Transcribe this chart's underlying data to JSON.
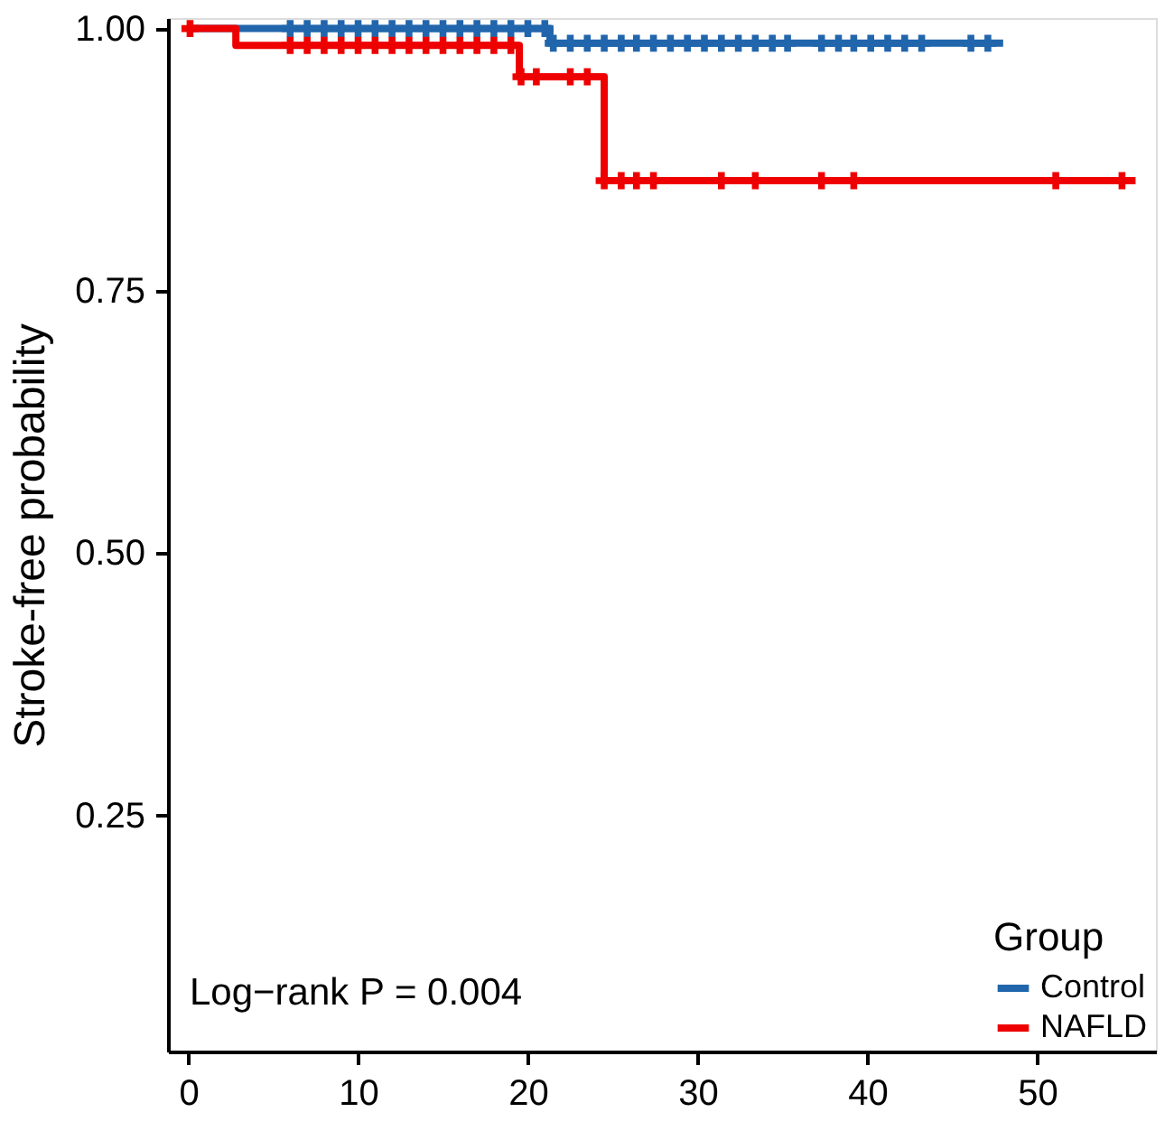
{
  "chart_data": {
    "type": "step",
    "ylabel": "Stroke-free probability",
    "legend_title": "Group",
    "legend": "bottom right",
    "grid": false,
    "line_style": "solid",
    "xlim": [
      -1.2,
      57
    ],
    "xticks": [
      0,
      10,
      20,
      30,
      40,
      50
    ],
    "ylim": [
      0.025,
      1.01
    ],
    "yticks": [
      0.25,
      {
        "value": 0.5,
        "label": "0.50"
      },
      {
        "value": 0.75,
        "label": "0.75"
      },
      {
        "value": 1.0,
        "label": "1.00"
      }
    ],
    "annotations": [
      "Log−rank P = 0.004"
    ],
    "series": [
      {
        "name": "Control",
        "color": "#2166ac",
        "x": [
          0,
          21.3,
          48
        ],
        "values": [
          1.0,
          0.986,
          0.986
        ]
      },
      {
        "name": "NAFLD",
        "color": "#ee0000",
        "x": [
          0,
          2.8,
          19.5,
          24.5,
          55.8
        ],
        "values": [
          1.0,
          0.984,
          0.954,
          0.855,
          0.855
        ]
      },
      {
        "type": "scatter",
        "marker": "cross",
        "color": "#2166ac",
        "x": [
          6,
          7,
          8,
          9,
          10,
          11,
          12,
          13,
          14,
          15,
          16,
          17,
          18,
          19,
          20,
          21,
          21.5,
          22.5,
          23.5,
          24.5,
          25.5,
          26.4,
          27.4,
          28.4,
          29.4,
          30.4,
          31.4,
          32.4,
          33.4,
          34.4,
          35.3,
          37.3,
          38.3,
          39.2,
          40.2,
          41.2,
          42.2,
          43.2,
          46.1,
          47.1
        ],
        "values": [
          1.0,
          1.0,
          1.0,
          1.0,
          1.0,
          1.0,
          1.0,
          1.0,
          1.0,
          1.0,
          1.0,
          1.0,
          1.0,
          1.0,
          1.0,
          1.0,
          0.986,
          0.986,
          0.986,
          0.986,
          0.986,
          0.986,
          0.986,
          0.986,
          0.986,
          0.986,
          0.986,
          0.986,
          0.986,
          0.986,
          0.986,
          0.986,
          0.986,
          0.986,
          0.986,
          0.986,
          0.986,
          0.986,
          0.986,
          0.986
        ]
      },
      {
        "type": "scatter",
        "marker": "cross",
        "color": "#ee0000",
        "x": [
          0.1,
          6,
          7,
          8,
          9,
          10,
          11,
          12,
          13,
          14,
          15,
          16,
          17,
          18,
          19,
          19.6,
          20.5,
          22.5,
          23.5,
          24.5,
          25.5,
          26.4,
          27.4,
          31.4,
          33.4,
          37.3,
          39.2,
          51.1,
          55.0
        ],
        "values": [
          1.0,
          0.984,
          0.984,
          0.984,
          0.984,
          0.984,
          0.984,
          0.984,
          0.984,
          0.984,
          0.984,
          0.984,
          0.984,
          0.984,
          0.984,
          0.954,
          0.954,
          0.954,
          0.954,
          0.855,
          0.855,
          0.855,
          0.855,
          0.855,
          0.855,
          0.855,
          0.855,
          0.855,
          0.855
        ]
      }
    ]
  }
}
